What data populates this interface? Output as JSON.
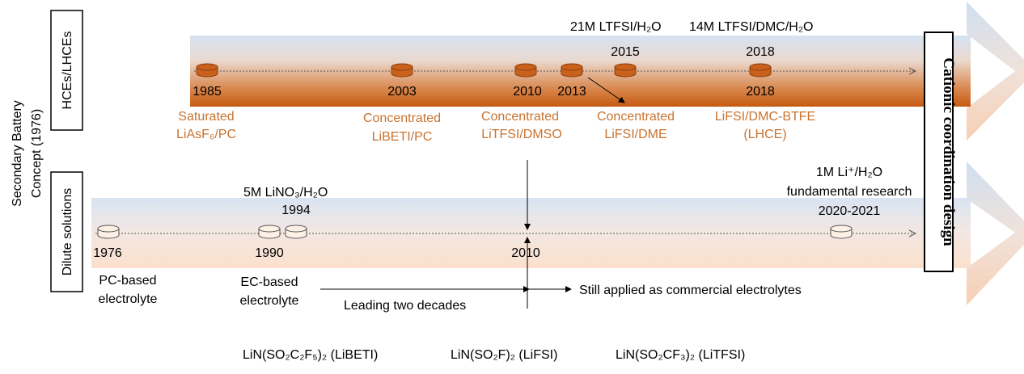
{
  "side_label": {
    "line1": "Secondary Battery",
    "line2": "Concept (1976)"
  },
  "track_labels": {
    "hce": "HCEs/LHCEs",
    "dilute": "Dilute solutions"
  },
  "right_banner": "Cationic coordination design",
  "hce_track": {
    "markers": [
      {
        "year_below": "1985",
        "year_above": ""
      },
      {
        "year_below": "2003",
        "year_above": ""
      },
      {
        "year_below": "2010",
        "year_above": ""
      },
      {
        "year_below": "2013",
        "year_above": ""
      },
      {
        "year_below": "",
        "year_above": "2015"
      },
      {
        "year_below": "2018",
        "year_above": "2018"
      }
    ],
    "top_labels": {
      "ltfsi_21m": "21M LTFSI/H₂O",
      "ltfsi_14m": "14M LTFSI/DMC/H₂O"
    },
    "captions": [
      {
        "line1": "Saturated",
        "line2": "LiAsF₆/PC"
      },
      {
        "line1": "Concentrated",
        "line2": "LiBETI/PC"
      },
      {
        "line1": "Concentrated",
        "line2": "LiTFSI/DMSO"
      },
      {
        "line1": "Concentrated",
        "line2": "LiFSI/DME"
      },
      {
        "line1": "LiFSI/DMC-BTFE",
        "line2": "(LHCE)"
      }
    ]
  },
  "dilute_track": {
    "markers": [
      {
        "year_below": "1976"
      },
      {
        "year_below": "1990"
      },
      {
        "year_below": "1994"
      },
      {
        "year_below": "2010"
      },
      {
        "year_below": "2020-2021"
      }
    ],
    "top_labels": {
      "lino3": "5M LiNO₃/H₂O",
      "li_h2o_line1": "1M Li⁺/H₂O",
      "li_h2o_line2": "fundamental research"
    },
    "captions": [
      {
        "line1": "PC-based",
        "line2": "electrolyte"
      },
      {
        "line1": "EC-based",
        "line2": "electrolyte"
      }
    ],
    "arrow_notes": {
      "leading": "Leading two decades",
      "still_applied": "Still applied as commercial electrolytes"
    }
  },
  "salts": [
    "LiN(SO₂C₂F₅)₂ (LiBETI)",
    "LiN(SO₂F)₂ (LiFSI)",
    "LiN(SO₂CF₃)₂ (LiTFSI)"
  ],
  "colors": {
    "hce_caption": "#c9722e",
    "hce_arrow_dark": "#c55a11",
    "blue_tint": "#dbe5f1",
    "dilute_arrow_peach": "#fbe3d3",
    "cylinder_dark": "#c9601b",
    "cylinder_light": "#fdf0e4"
  }
}
